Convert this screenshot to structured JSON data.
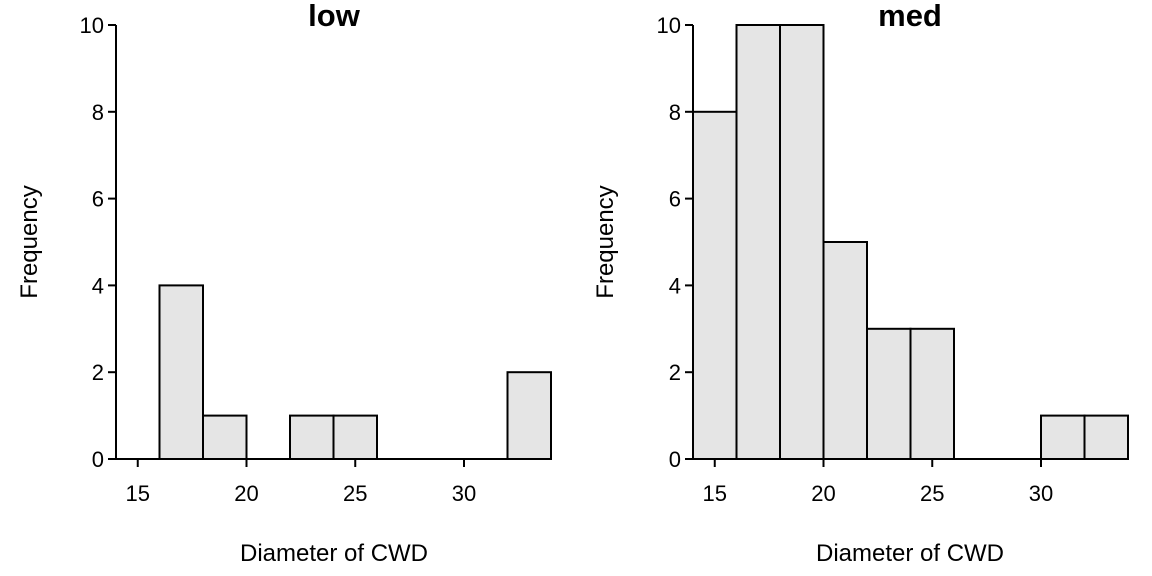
{
  "chart_data": [
    {
      "type": "bar",
      "title": "low",
      "xlabel": "Diameter of CWD",
      "ylabel": "Frequency",
      "bin_edges": [
        14,
        16,
        18,
        20,
        22,
        24,
        26,
        28,
        30,
        32,
        34
      ],
      "values": [
        0,
        4,
        1,
        0,
        1,
        1,
        0,
        0,
        0,
        2
      ],
      "xlim": [
        14,
        34
      ],
      "ylim": [
        0,
        10
      ],
      "xticks": [
        15,
        20,
        25,
        30
      ],
      "yticks": [
        0,
        2,
        4,
        6,
        8,
        10
      ],
      "bar_color": "#e5e5e5",
      "edge_color": "#000000"
    },
    {
      "type": "bar",
      "title": "med",
      "xlabel": "Diameter of CWD",
      "ylabel": "Frequency",
      "bin_edges": [
        14,
        16,
        18,
        20,
        22,
        24,
        26,
        28,
        30,
        32,
        34
      ],
      "values": [
        8,
        10,
        10,
        5,
        3,
        3,
        0,
        0,
        1,
        1
      ],
      "xlim": [
        14,
        34
      ],
      "ylim": [
        0,
        10
      ],
      "xticks": [
        15,
        20,
        25,
        30
      ],
      "yticks": [
        0,
        2,
        4,
        6,
        8,
        10
      ],
      "bar_color": "#e5e5e5",
      "edge_color": "#000000"
    }
  ]
}
